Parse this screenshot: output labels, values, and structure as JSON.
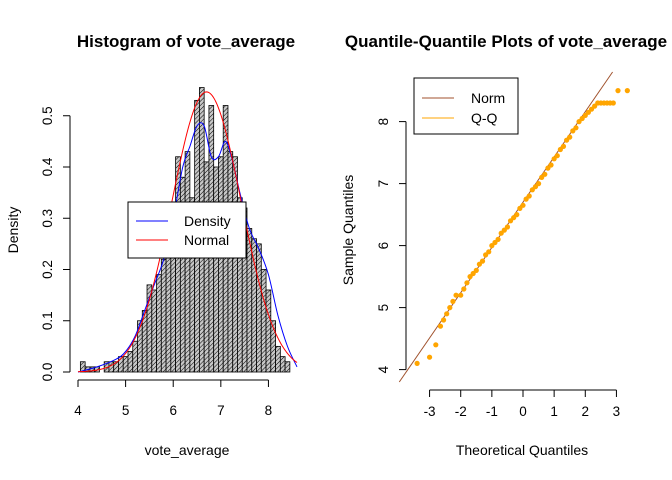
{
  "chart_data": [
    {
      "type": "bar",
      "subtype": "histogram",
      "title": "Histogram of vote_average",
      "xlabel": "vote_average",
      "ylabel": "Density",
      "xlim": [
        4.0,
        8.6
      ],
      "ylim": [
        0,
        0.56
      ],
      "xticks": [
        "4",
        "5",
        "6",
        "7",
        "8"
      ],
      "yticks": [
        "0.0",
        "0.1",
        "0.2",
        "0.3",
        "0.4",
        "0.5"
      ],
      "bin_width": 0.1,
      "bins": [
        {
          "x": 4.1,
          "y": 0.02
        },
        {
          "x": 4.2,
          "y": 0.01
        },
        {
          "x": 4.3,
          "y": 0.01
        },
        {
          "x": 4.4,
          "y": 0.01
        },
        {
          "x": 4.5,
          "y": 0.0
        },
        {
          "x": 4.6,
          "y": 0.02
        },
        {
          "x": 4.7,
          "y": 0.02
        },
        {
          "x": 4.8,
          "y": 0.02
        },
        {
          "x": 4.9,
          "y": 0.03
        },
        {
          "x": 5.0,
          "y": 0.03
        },
        {
          "x": 5.1,
          "y": 0.04
        },
        {
          "x": 5.2,
          "y": 0.06
        },
        {
          "x": 5.3,
          "y": 0.1
        },
        {
          "x": 5.4,
          "y": 0.12
        },
        {
          "x": 5.5,
          "y": 0.17
        },
        {
          "x": 5.6,
          "y": 0.16
        },
        {
          "x": 5.7,
          "y": 0.19
        },
        {
          "x": 5.8,
          "y": 0.22
        },
        {
          "x": 5.9,
          "y": 0.27
        },
        {
          "x": 6.0,
          "y": 0.24
        },
        {
          "x": 6.1,
          "y": 0.42
        },
        {
          "x": 6.2,
          "y": 0.38
        },
        {
          "x": 6.3,
          "y": 0.43
        },
        {
          "x": 6.4,
          "y": 0.34
        },
        {
          "x": 6.5,
          "y": 0.53
        },
        {
          "x": 6.6,
          "y": 0.555
        },
        {
          "x": 6.7,
          "y": 0.41
        },
        {
          "x": 6.8,
          "y": 0.52
        },
        {
          "x": 6.9,
          "y": 0.4
        },
        {
          "x": 7.0,
          "y": 0.42
        },
        {
          "x": 7.1,
          "y": 0.52
        },
        {
          "x": 7.2,
          "y": 0.43
        },
        {
          "x": 7.3,
          "y": 0.42
        },
        {
          "x": 7.4,
          "y": 0.34
        },
        {
          "x": 7.5,
          "y": 0.32
        },
        {
          "x": 7.6,
          "y": 0.28
        },
        {
          "x": 7.7,
          "y": 0.26
        },
        {
          "x": 7.8,
          "y": 0.25
        },
        {
          "x": 7.9,
          "y": 0.2
        },
        {
          "x": 8.0,
          "y": 0.16
        },
        {
          "x": 8.1,
          "y": 0.1
        },
        {
          "x": 8.2,
          "y": 0.05
        },
        {
          "x": 8.3,
          "y": 0.03
        },
        {
          "x": 8.4,
          "y": 0.02
        }
      ],
      "density_curve": {
        "x": [
          4.0,
          4.4,
          4.8,
          5.0,
          5.2,
          5.4,
          5.6,
          5.8,
          6.0,
          6.2,
          6.35,
          6.5,
          6.65,
          6.8,
          6.95,
          7.1,
          7.25,
          7.4,
          7.6,
          7.8,
          8.0,
          8.2,
          8.4,
          8.6
        ],
        "y": [
          0.0,
          0.01,
          0.025,
          0.04,
          0.07,
          0.12,
          0.17,
          0.22,
          0.3,
          0.4,
          0.44,
          0.48,
          0.48,
          0.42,
          0.42,
          0.45,
          0.41,
          0.35,
          0.28,
          0.24,
          0.19,
          0.11,
          0.05,
          0.01
        ]
      },
      "normal_curve": {
        "mean": 6.7,
        "sd": 0.73
      },
      "legend": {
        "position": "center",
        "entries": [
          {
            "label": "Density",
            "color": "#0000ff"
          },
          {
            "label": "Normal",
            "color": "#ff0000"
          }
        ]
      },
      "colors": {
        "bar_fill": "#bebebe",
        "bar_stroke": "#000000",
        "density": "#0000ff",
        "normal": "#ff0000"
      }
    },
    {
      "type": "scatter",
      "subtype": "qq",
      "title": "Quantile-Quantile Plots of vote_average",
      "xlabel": "Theoretical Quantiles",
      "ylabel": "Sample Quantiles",
      "xlim": [
        -3.5,
        3.5
      ],
      "ylim": [
        3.8,
        8.8
      ],
      "xticks": [
        "-3",
        "-2",
        "-1",
        "0",
        "1",
        "2",
        "3"
      ],
      "yticks": [
        "4",
        "5",
        "6",
        "7",
        "8"
      ],
      "reference_line": {
        "intercept": 6.7,
        "slope": 0.73
      },
      "points": [
        [
          -3.4,
          4.1
        ],
        [
          -3.0,
          4.2
        ],
        [
          -2.8,
          4.4
        ],
        [
          -2.65,
          4.7
        ],
        [
          -2.55,
          4.8
        ],
        [
          -2.45,
          4.9
        ],
        [
          -2.35,
          5.0
        ],
        [
          -2.25,
          5.1
        ],
        [
          -2.15,
          5.2
        ],
        [
          -2.0,
          5.2
        ],
        [
          -1.9,
          5.3
        ],
        [
          -1.8,
          5.4
        ],
        [
          -1.7,
          5.5
        ],
        [
          -1.6,
          5.55
        ],
        [
          -1.5,
          5.6
        ],
        [
          -1.4,
          5.7
        ],
        [
          -1.3,
          5.75
        ],
        [
          -1.2,
          5.85
        ],
        [
          -1.1,
          5.9
        ],
        [
          -1.0,
          6.0
        ],
        [
          -0.9,
          6.05
        ],
        [
          -0.8,
          6.1
        ],
        [
          -0.7,
          6.2
        ],
        [
          -0.6,
          6.25
        ],
        [
          -0.5,
          6.3
        ],
        [
          -0.4,
          6.4
        ],
        [
          -0.3,
          6.45
        ],
        [
          -0.2,
          6.5
        ],
        [
          -0.1,
          6.6
        ],
        [
          0.0,
          6.65
        ],
        [
          0.1,
          6.75
        ],
        [
          0.2,
          6.8
        ],
        [
          0.3,
          6.9
        ],
        [
          0.4,
          6.95
        ],
        [
          0.5,
          7.0
        ],
        [
          0.6,
          7.1
        ],
        [
          0.7,
          7.15
        ],
        [
          0.8,
          7.25
        ],
        [
          0.9,
          7.3
        ],
        [
          1.0,
          7.4
        ],
        [
          1.1,
          7.45
        ],
        [
          1.2,
          7.55
        ],
        [
          1.3,
          7.6
        ],
        [
          1.4,
          7.7
        ],
        [
          1.5,
          7.75
        ],
        [
          1.6,
          7.85
        ],
        [
          1.7,
          7.9
        ],
        [
          1.8,
          8.0
        ],
        [
          1.9,
          8.05
        ],
        [
          2.0,
          8.1
        ],
        [
          2.1,
          8.15
        ],
        [
          2.2,
          8.2
        ],
        [
          2.3,
          8.25
        ],
        [
          2.4,
          8.3
        ],
        [
          2.5,
          8.3
        ],
        [
          2.6,
          8.3
        ],
        [
          2.7,
          8.3
        ],
        [
          2.8,
          8.3
        ],
        [
          2.9,
          8.3
        ],
        [
          3.05,
          8.5
        ],
        [
          3.35,
          8.5
        ]
      ],
      "legend": {
        "position": "top-left",
        "entries": [
          {
            "label": "Norm",
            "color": "#a0522d"
          },
          {
            "label": "Q-Q",
            "color": "#ffa500"
          }
        ]
      },
      "colors": {
        "points": "#ffa500",
        "line": "#a0522d"
      }
    }
  ]
}
